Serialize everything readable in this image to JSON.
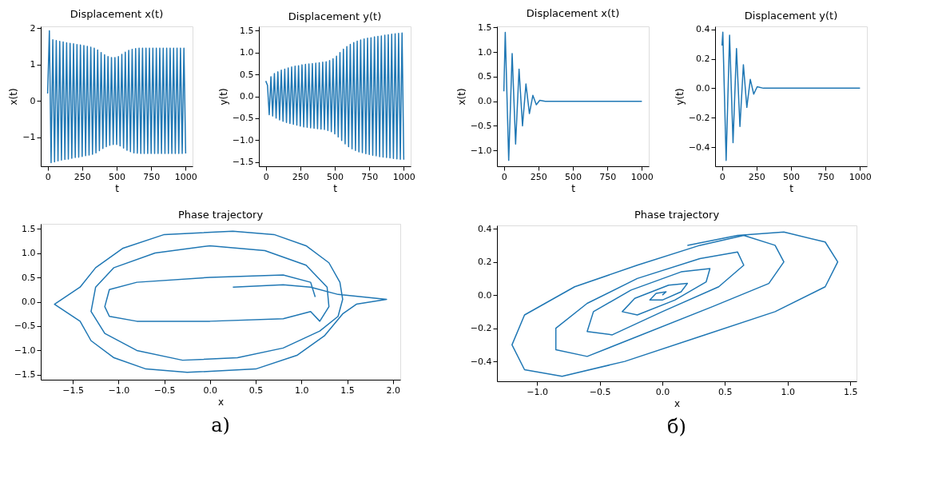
{
  "chart_data": [
    {
      "type": "line",
      "title": "Displacement x(t)",
      "xlabel": "t",
      "ylabel": "x(t)",
      "xlim": [
        -50,
        1050
      ],
      "xticks": [
        0,
        250,
        500,
        750,
        1000
      ],
      "ylim": [
        -1.8,
        2.05
      ],
      "yticks": [
        -1,
        0,
        1,
        2
      ],
      "grid": false,
      "series": [
        {
          "color": "#1f77b4",
          "x": [
            0,
            12.5,
            25,
            37.5,
            50,
            62.5,
            75,
            87.5,
            100,
            112.5,
            125,
            137.5,
            150,
            162.5,
            175,
            187.5,
            200,
            212.5,
            225,
            237.5,
            250,
            262.5,
            275,
            287.5,
            300,
            312.5,
            325,
            337.5,
            350,
            362.5,
            375,
            387.5,
            400,
            412.5,
            425,
            437.5,
            450,
            462.5,
            475,
            487.5,
            500,
            512.5,
            525,
            537.5,
            550,
            562.5,
            575,
            587.5,
            600,
            612.5,
            625,
            637.5,
            650,
            662.5,
            675,
            687.5,
            700,
            712.5,
            725,
            737.5,
            750,
            762.5,
            775,
            787.5,
            800,
            812.5,
            825,
            837.5,
            850,
            862.5,
            875,
            887.5,
            900,
            912.5,
            925,
            937.5,
            950,
            962.5,
            975,
            987.5,
            1000
          ],
          "values": [
            0.2,
            1.93,
            -1.7,
            1.68,
            -1.68,
            1.66,
            -1.65,
            1.64,
            -1.63,
            1.62,
            -1.61,
            1.6,
            -1.6,
            1.58,
            -1.58,
            1.57,
            -1.56,
            1.55,
            -1.55,
            1.54,
            -1.53,
            1.52,
            -1.51,
            1.5,
            -1.49,
            1.48,
            -1.47,
            1.45,
            -1.43,
            1.4,
            -1.37,
            1.33,
            -1.31,
            1.27,
            -1.26,
            1.22,
            -1.22,
            1.19,
            -1.2,
            1.19,
            -1.2,
            1.22,
            -1.24,
            1.28,
            -1.3,
            1.34,
            -1.36,
            1.39,
            -1.4,
            1.42,
            -1.43,
            1.44,
            -1.44,
            1.45,
            -1.45,
            1.45,
            -1.45,
            1.45,
            -1.45,
            1.45,
            -1.45,
            1.45,
            -1.45,
            1.45,
            -1.45,
            1.45,
            -1.45,
            1.45,
            -1.45,
            1.45,
            -1.45,
            1.45,
            -1.45,
            1.45,
            -1.45,
            1.45,
            -1.45,
            1.45,
            -1.45,
            1.45,
            -1.45
          ]
        }
      ]
    },
    {
      "type": "line",
      "title": "Displacement y(t)",
      "xlabel": "t",
      "ylabel": "y(t)",
      "xlim": [
        -50,
        1050
      ],
      "xticks": [
        0,
        250,
        500,
        750,
        1000
      ],
      "ylim": [
        -1.6,
        1.6
      ],
      "yticks": [
        -1.5,
        {
          "value": -1,
          "label": "−1.0"
        },
        -0.5,
        {
          "value": 0,
          "label": "0.0"
        },
        0.5,
        {
          "value": 1,
          "label": "1.0"
        },
        1.5
      ],
      "grid": false,
      "series": [
        {
          "color": "#1f77b4",
          "x": [
            0,
            12.5,
            25,
            37.5,
            50,
            62.5,
            75,
            87.5,
            100,
            112.5,
            125,
            137.5,
            150,
            162.5,
            175,
            187.5,
            200,
            212.5,
            225,
            237.5,
            250,
            262.5,
            275,
            287.5,
            300,
            312.5,
            325,
            337.5,
            350,
            362.5,
            375,
            387.5,
            400,
            412.5,
            425,
            437.5,
            450,
            462.5,
            475,
            487.5,
            500,
            512.5,
            525,
            537.5,
            550,
            562.5,
            575,
            587.5,
            600,
            612.5,
            625,
            637.5,
            650,
            662.5,
            675,
            687.5,
            700,
            712.5,
            725,
            737.5,
            750,
            762.5,
            775,
            787.5,
            800,
            812.5,
            825,
            837.5,
            850,
            862.5,
            875,
            887.5,
            900,
            912.5,
            925,
            937.5,
            950,
            962.5,
            975,
            987.5,
            1000
          ],
          "values": [
            0.35,
            0.25,
            -0.42,
            0.45,
            -0.45,
            0.52,
            -0.5,
            0.56,
            -0.54,
            0.6,
            -0.57,
            0.62,
            -0.6,
            0.65,
            -0.62,
            0.67,
            -0.64,
            0.69,
            -0.66,
            0.7,
            -0.68,
            0.72,
            -0.7,
            0.73,
            -0.71,
            0.74,
            -0.72,
            0.75,
            -0.73,
            0.76,
            -0.74,
            0.77,
            -0.75,
            0.78,
            -0.76,
            0.79,
            -0.78,
            0.82,
            -0.81,
            0.86,
            -0.86,
            0.92,
            -0.93,
            1.0,
            -1.01,
            1.08,
            -1.09,
            1.14,
            -1.15,
            1.19,
            -1.2,
            1.23,
            -1.24,
            1.26,
            -1.27,
            1.29,
            -1.29,
            1.31,
            -1.31,
            1.33,
            -1.33,
            1.34,
            -1.35,
            1.36,
            -1.36,
            1.37,
            -1.38,
            1.38,
            -1.39,
            1.4,
            -1.4,
            1.41,
            -1.41,
            1.42,
            -1.42,
            1.43,
            -1.43,
            1.44,
            -1.44,
            1.45,
            -1.45
          ]
        }
      ]
    },
    {
      "type": "line",
      "title": "Phase trajectory",
      "xlabel": "x",
      "xlim": [
        -1.85,
        2.08
      ],
      "xticks": [
        -1.5,
        {
          "value": -1,
          "label": "−1.0"
        },
        -0.5,
        {
          "value": 0,
          "label": "0.0"
        },
        0.5,
        {
          "value": 1,
          "label": "1.0"
        },
        1.5,
        {
          "value": 2,
          "label": "2.0"
        }
      ],
      "ylim": [
        -1.6,
        1.6
      ],
      "yticks": [
        -1.5,
        {
          "value": -1,
          "label": "−1.0"
        },
        -0.5,
        {
          "value": 0,
          "label": "0.0"
        },
        0.5,
        {
          "value": 1,
          "label": "1.0"
        },
        1.5
      ],
      "grid": false,
      "annotations": [
        "а)"
      ],
      "series": [
        {
          "color": "#1f77b4",
          "x": [
            0.25,
            0.8,
            1.1,
            1.4,
            1.93,
            1.6,
            1.45,
            1.25,
            0.95,
            0.5,
            -0.25,
            -0.7,
            -1.05,
            -1.3,
            -1.42,
            -1.7,
            -1.42,
            -1.25,
            -0.95,
            -0.5,
            0.25,
            0.7,
            1.05,
            1.3,
            1.42,
            1.45,
            1.4,
            1.2,
            0.8,
            0.3,
            -0.3,
            -0.8,
            -1.15,
            -1.3,
            -1.25,
            -1.05,
            -0.6,
            0,
            0.6,
            1.05,
            1.28,
            1.3,
            1.2,
            1.1,
            0.8,
            0,
            -0.8,
            -1.1,
            -1.15,
            -1.1,
            -0.8,
            0,
            0.8,
            1.1,
            1.15
          ],
          "values": [
            0.3,
            0.35,
            0.3,
            0.15,
            0.05,
            -0.05,
            -0.25,
            -0.7,
            -1.1,
            -1.38,
            -1.45,
            -1.38,
            -1.15,
            -0.8,
            -0.4,
            -0.05,
            0.3,
            0.7,
            1.1,
            1.38,
            1.45,
            1.38,
            1.15,
            0.8,
            0.4,
            0.05,
            -0.3,
            -0.6,
            -0.95,
            -1.15,
            -1.2,
            -1.0,
            -0.65,
            -0.2,
            0.3,
            0.7,
            1.0,
            1.15,
            1.05,
            0.75,
            0.3,
            -0.1,
            -0.4,
            -0.2,
            -0.35,
            -0.4,
            -0.4,
            -0.3,
            -0.1,
            0.25,
            0.4,
            0.5,
            0.55,
            0.4,
            0.1
          ]
        }
      ]
    },
    {
      "type": "line",
      "title": "Displacement x(t)",
      "xlabel": "t",
      "ylabel": "x(t)",
      "xlim": [
        -50,
        1050
      ],
      "xticks": [
        0,
        250,
        500,
        750,
        1000
      ],
      "ylim": [
        -1.32,
        1.52
      ],
      "yticks": [
        {
          "value": -1,
          "label": "−1.0"
        },
        -0.5,
        {
          "value": 0,
          "label": "0.0"
        },
        0.5,
        {
          "value": 1,
          "label": "1.0"
        },
        1.5
      ],
      "grid": false,
      "series": [
        {
          "color": "#1f77b4",
          "x": [
            0,
            10,
            35,
            60,
            85,
            110,
            135,
            160,
            185,
            210,
            235,
            260,
            300,
            1000
          ],
          "values": [
            0.2,
            1.4,
            -1.2,
            0.97,
            -0.87,
            0.65,
            -0.5,
            0.35,
            -0.25,
            0.12,
            -0.07,
            0.02,
            0,
            0
          ]
        }
      ]
    },
    {
      "type": "line",
      "title": "Displacement y(t)",
      "xlabel": "t",
      "ylabel": "y(t)",
      "xlim": [
        -50,
        1050
      ],
      "xticks": [
        0,
        250,
        500,
        750,
        1000
      ],
      "ylim": [
        -0.53,
        0.42
      ],
      "yticks": [
        -0.4,
        -0.2,
        {
          "value": 0,
          "label": "0.0"
        },
        0.2,
        0.4
      ],
      "grid": false,
      "series": [
        {
          "color": "#1f77b4",
          "x": [
            0,
            6,
            30,
            55,
            80,
            105,
            130,
            155,
            180,
            205,
            230,
            255,
            300,
            1000
          ],
          "values": [
            0.29,
            0.38,
            -0.49,
            0.36,
            -0.37,
            0.27,
            -0.26,
            0.16,
            -0.13,
            0.06,
            -0.04,
            0.01,
            0,
            0
          ]
        }
      ]
    },
    {
      "type": "line",
      "title": "Phase trajectory",
      "xlabel": "x",
      "xlim": [
        -1.32,
        1.55
      ],
      "xticks": [
        {
          "value": -1,
          "label": "−1.0"
        },
        -0.5,
        {
          "value": 0,
          "label": "0.0"
        },
        0.5,
        {
          "value": 1,
          "label": "1.0"
        },
        1.5
      ],
      "ylim": [
        -0.52,
        0.42
      ],
      "yticks": [
        -0.4,
        -0.2,
        {
          "value": 0,
          "label": "0.0"
        },
        0.2,
        0.4
      ],
      "grid": false,
      "annotations": [
        "б)"
      ],
      "series": [
        {
          "color": "#1f77b4",
          "x": [
            0.2,
            0.6,
            0.97,
            1.3,
            1.4,
            1.3,
            0.9,
            0.3,
            -0.3,
            -0.8,
            -1.1,
            -1.2,
            -1.1,
            -0.7,
            -0.2,
            0.3,
            0.65,
            0.9,
            0.97,
            0.85,
            0.4,
            -0.2,
            -0.6,
            -0.85,
            -0.85,
            -0.6,
            -0.2,
            0.3,
            0.6,
            0.65,
            0.45,
            0.0,
            -0.4,
            -0.6,
            -0.55,
            -0.25,
            0.15,
            0.38,
            0.35,
            0.1,
            -0.2,
            -0.32,
            -0.22,
            0.05,
            0.2,
            0.15,
            0,
            -0.1,
            -0.05,
            0.03,
            0
          ],
          "values": [
            0.3,
            0.36,
            0.38,
            0.32,
            0.2,
            0.05,
            -0.1,
            -0.25,
            -0.4,
            -0.49,
            -0.45,
            -0.3,
            -0.12,
            0.05,
            0.18,
            0.3,
            0.36,
            0.3,
            0.2,
            0.07,
            -0.07,
            -0.25,
            -0.37,
            -0.33,
            -0.2,
            -0.05,
            0.1,
            0.22,
            0.26,
            0.18,
            0.05,
            -0.1,
            -0.24,
            -0.22,
            -0.1,
            0.03,
            0.14,
            0.16,
            0.08,
            -0.03,
            -0.12,
            -0.1,
            -0.02,
            0.06,
            0.07,
            0.02,
            -0.03,
            -0.03,
            0.01,
            0.02,
            0
          ]
        }
      ]
    }
  ]
}
